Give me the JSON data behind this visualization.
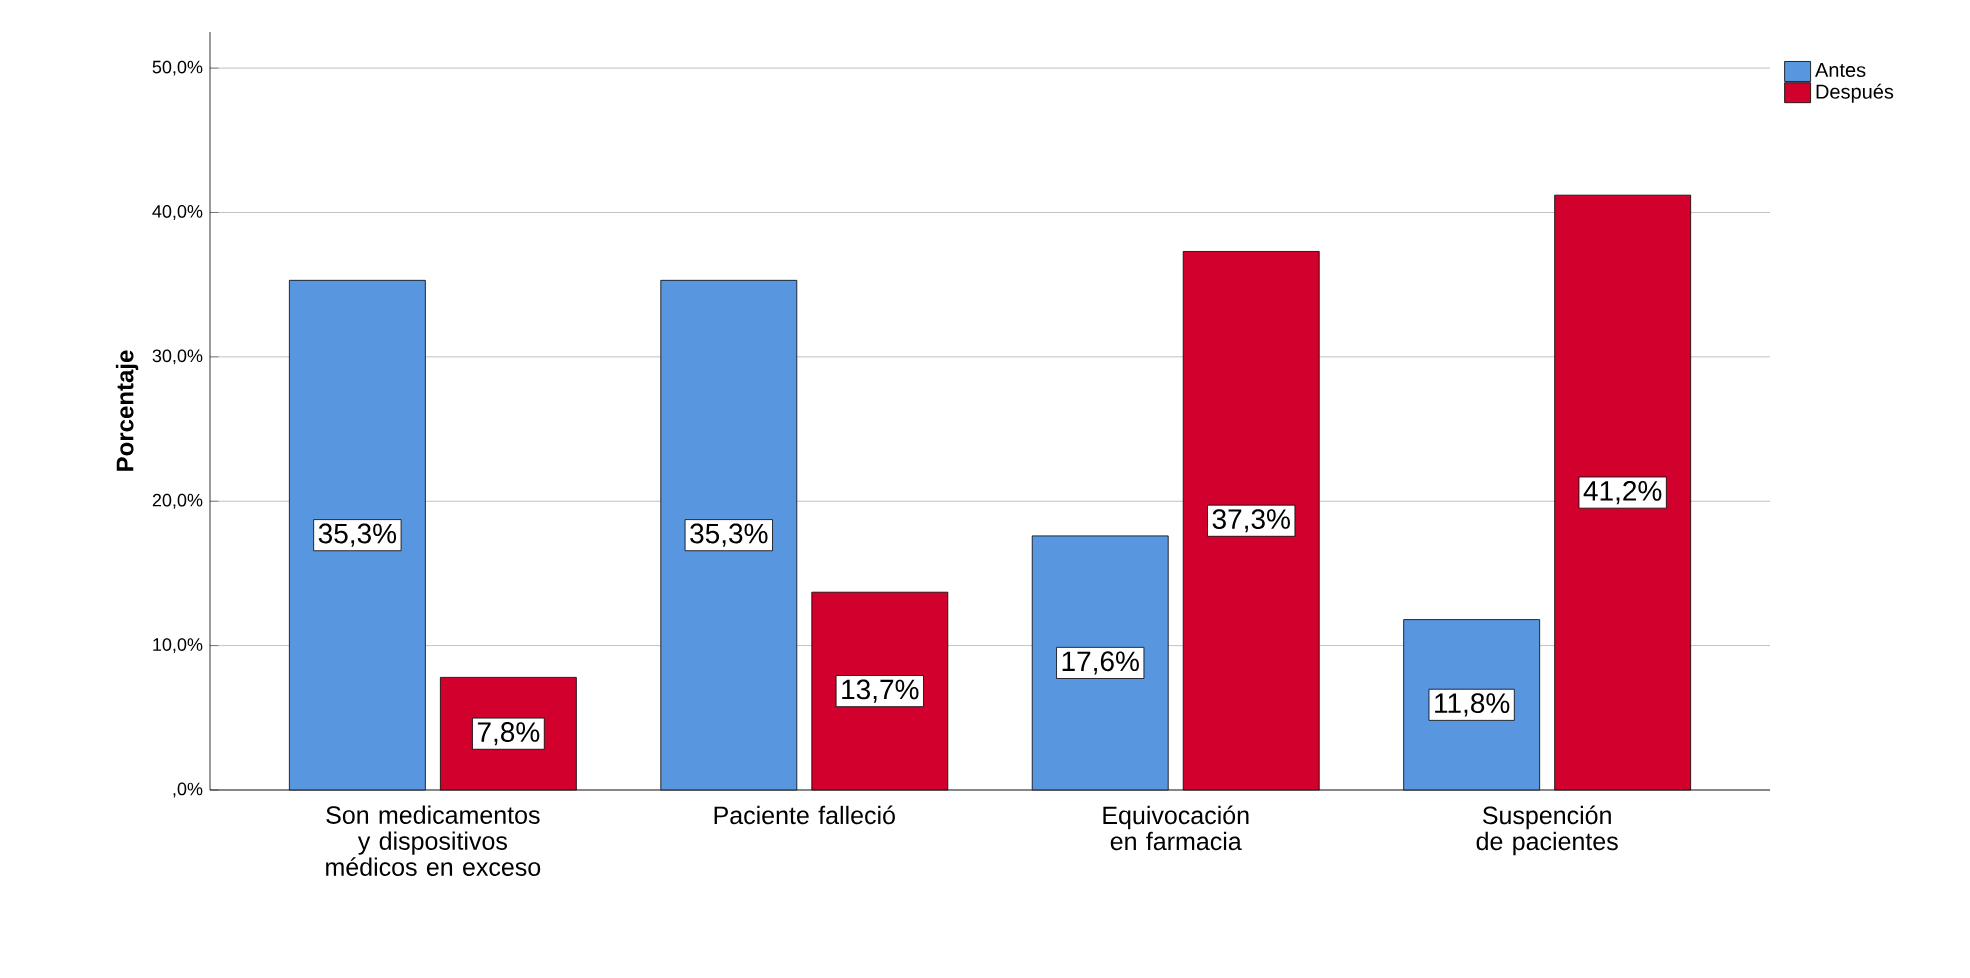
{
  "chart_data": {
    "type": "bar",
    "ylabel": "Porcentaje",
    "categories": [
      "Son medicamentos y dispositivos médicos en exceso",
      "Paciente falleció",
      "Equivocación en farmacia",
      "Suspención de pacientes"
    ],
    "series": [
      {
        "name": "Antes",
        "color": "#5896e0",
        "values": [
          35.3,
          35.3,
          17.6,
          11.8
        ],
        "value_labels": [
          "35,3%",
          "35,3%",
          "17,6%",
          "11,8%"
        ]
      },
      {
        "name": "Después",
        "color": "#d2002c",
        "values": [
          7.8,
          13.7,
          37.3,
          41.2
        ],
        "value_labels": [
          "7,8%",
          "13,7%",
          "37,3%",
          "41,2%"
        ]
      }
    ],
    "ylim": [
      0,
      52.5
    ],
    "yticks": [
      {
        "value": 0,
        "label": ",0%"
      },
      {
        "value": 10,
        "label": "10,0%"
      },
      {
        "value": 20,
        "label": "20,0%"
      },
      {
        "value": 30,
        "label": "30,0%"
      },
      {
        "value": 40,
        "label": "40,0%"
      },
      {
        "value": 50,
        "label": "50,0%"
      }
    ],
    "grid": "y",
    "legend": "top right"
  }
}
